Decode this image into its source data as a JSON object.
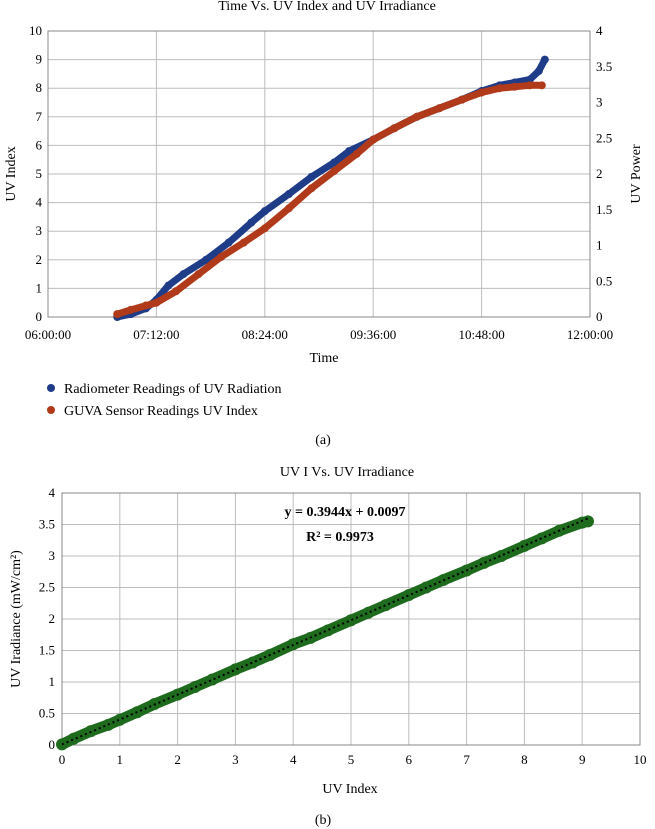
{
  "chart_data": [
    {
      "type": "scatter",
      "title": "Time Vs. UV Index and UV Irradiance",
      "xlabel": "Time",
      "ylabel": "UV Index",
      "y2label": "UV Power",
      "x_ticks": [
        "06:00:00",
        "07:12:00",
        "08:24:00",
        "09:36:00",
        "10:48:00",
        "12:00:00"
      ],
      "xlim": [
        "06:00:00",
        "12:00:00"
      ],
      "ylim": [
        0,
        10
      ],
      "y_ticks": [
        0,
        1,
        2,
        3,
        4,
        5,
        6,
        7,
        8,
        9,
        10
      ],
      "y2lim": [
        0,
        4
      ],
      "y2_ticks": [
        "0",
        "0.5",
        "1",
        "1.5",
        "2",
        "2.5",
        "3",
        "3.5",
        "4"
      ],
      "grid": true,
      "legend_position": "bottom-left",
      "caption": "(a)",
      "series": [
        {
          "name": "Radiometer Readings of UV Radiation",
          "color": "#1f3c88",
          "axis": "left",
          "points": [
            [
              "06:46:00",
              0.0
            ],
            [
              "06:55:00",
              0.1
            ],
            [
              "07:05:00",
              0.3
            ],
            [
              "07:12:00",
              0.6
            ],
            [
              "07:20:00",
              1.1
            ],
            [
              "07:30:00",
              1.5
            ],
            [
              "07:45:00",
              2.0
            ],
            [
              "08:00:00",
              2.6
            ],
            [
              "08:15:00",
              3.3
            ],
            [
              "08:24:00",
              3.7
            ],
            [
              "08:40:00",
              4.3
            ],
            [
              "08:55:00",
              4.9
            ],
            [
              "09:10:00",
              5.4
            ],
            [
              "09:20:00",
              5.8
            ],
            [
              "09:36:00",
              6.2
            ],
            [
              "09:50:00",
              6.6
            ],
            [
              "10:05:00",
              7.0
            ],
            [
              "10:20:00",
              7.3
            ],
            [
              "10:35:00",
              7.6
            ],
            [
              "10:48:00",
              7.9
            ],
            [
              "11:00:00",
              8.1
            ],
            [
              "11:10:00",
              8.2
            ],
            [
              "11:20:00",
              8.3
            ],
            [
              "11:26:00",
              8.6
            ],
            [
              "11:30:00",
              9.0
            ]
          ]
        },
        {
          "name": "GUVA Sensor Readings UV Index",
          "color": "#b03a1a",
          "axis": "left",
          "points": [
            [
              "06:46:00",
              0.1
            ],
            [
              "06:55:00",
              0.25
            ],
            [
              "07:05:00",
              0.4
            ],
            [
              "07:12:00",
              0.5
            ],
            [
              "07:25:00",
              0.9
            ],
            [
              "07:40:00",
              1.5
            ],
            [
              "07:55:00",
              2.1
            ],
            [
              "08:10:00",
              2.6
            ],
            [
              "08:24:00",
              3.1
            ],
            [
              "08:40:00",
              3.8
            ],
            [
              "08:55:00",
              4.5
            ],
            [
              "09:10:00",
              5.1
            ],
            [
              "09:25:00",
              5.7
            ],
            [
              "09:36:00",
              6.2
            ],
            [
              "09:50:00",
              6.6
            ],
            [
              "10:05:00",
              7.0
            ],
            [
              "10:20:00",
              7.3
            ],
            [
              "10:35:00",
              7.6
            ],
            [
              "10:48:00",
              7.85
            ],
            [
              "11:00:00",
              8.0
            ],
            [
              "11:10:00",
              8.05
            ],
            [
              "11:20:00",
              8.1
            ],
            [
              "11:28:00",
              8.1
            ]
          ]
        }
      ]
    },
    {
      "type": "scatter",
      "title": "UV I Vs. UV Irradiance",
      "xlabel": "UV Index",
      "ylabel": "UV Iradiance (mW/cm²)",
      "xlim": [
        0,
        10
      ],
      "ylim": [
        0,
        4
      ],
      "x_ticks": [
        0,
        1,
        2,
        3,
        4,
        5,
        6,
        7,
        8,
        9,
        10
      ],
      "y_ticks": [
        "0",
        "0.5",
        "1",
        "1.5",
        "2",
        "2.5",
        "3",
        "3.5",
        "4"
      ],
      "grid": true,
      "caption": "(b)",
      "equation": "y = 0.3944x + 0.0097",
      "r_squared": "R² = 0.9973",
      "trendline": {
        "slope": 0.3944,
        "intercept": 0.0097,
        "color": "#000000"
      },
      "series": [
        {
          "color": "#1e6b1e",
          "points": [
            [
              0.0,
              0.01
            ],
            [
              0.2,
              0.1
            ],
            [
              0.5,
              0.22
            ],
            [
              0.8,
              0.32
            ],
            [
              1.0,
              0.4
            ],
            [
              1.3,
              0.52
            ],
            [
              1.6,
              0.65
            ],
            [
              2.0,
              0.8
            ],
            [
              2.3,
              0.92
            ],
            [
              2.6,
              1.04
            ],
            [
              3.0,
              1.2
            ],
            [
              3.3,
              1.31
            ],
            [
              3.6,
              1.43
            ],
            [
              4.0,
              1.6
            ],
            [
              4.3,
              1.7
            ],
            [
              4.6,
              1.82
            ],
            [
              5.0,
              1.98
            ],
            [
              5.3,
              2.1
            ],
            [
              5.6,
              2.22
            ],
            [
              6.0,
              2.38
            ],
            [
              6.3,
              2.5
            ],
            [
              6.6,
              2.62
            ],
            [
              7.0,
              2.77
            ],
            [
              7.3,
              2.89
            ],
            [
              7.6,
              3.0
            ],
            [
              8.0,
              3.16
            ],
            [
              8.3,
              3.28
            ],
            [
              8.6,
              3.4
            ],
            [
              9.0,
              3.53
            ],
            [
              9.1,
              3.55
            ]
          ]
        }
      ]
    }
  ]
}
